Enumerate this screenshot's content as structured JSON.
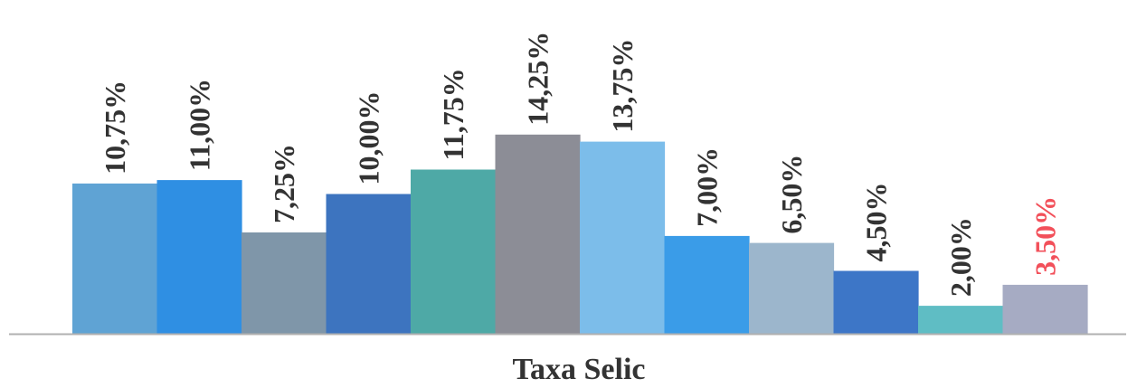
{
  "chart_data": {
    "type": "bar",
    "xlabel": "Taxa Selic",
    "ylabel": "",
    "ylim": [
      0,
      16
    ],
    "grid": false,
    "legend": "none",
    "values": [
      10.75,
      11.0,
      7.25,
      10.0,
      11.75,
      14.25,
      13.75,
      7.0,
      6.5,
      4.5,
      2.0,
      3.5
    ],
    "value_labels": [
      "10,75%",
      "11,00%",
      "7,25%",
      "10,00%",
      "11,75%",
      "14,25%",
      "13,75%",
      "7,00%",
      "6,50%",
      "4,50%",
      "2,00%",
      "3,50%"
    ],
    "bar_colors": [
      "#5fa3d4",
      "#2f8fe3",
      "#7f96a9",
      "#3d74bf",
      "#4ea9a6",
      "#8c8d96",
      "#7cbdea",
      "#3a9ce8",
      "#9cb6cc",
      "#3d76c7",
      "#5fbdc4",
      "#a6abc3"
    ],
    "label_colors": [
      "#333333",
      "#333333",
      "#333333",
      "#333333",
      "#333333",
      "#333333",
      "#333333",
      "#333333",
      "#333333",
      "#333333",
      "#333333",
      "#f2505a"
    ],
    "axis_color": "#b0b0b0"
  }
}
